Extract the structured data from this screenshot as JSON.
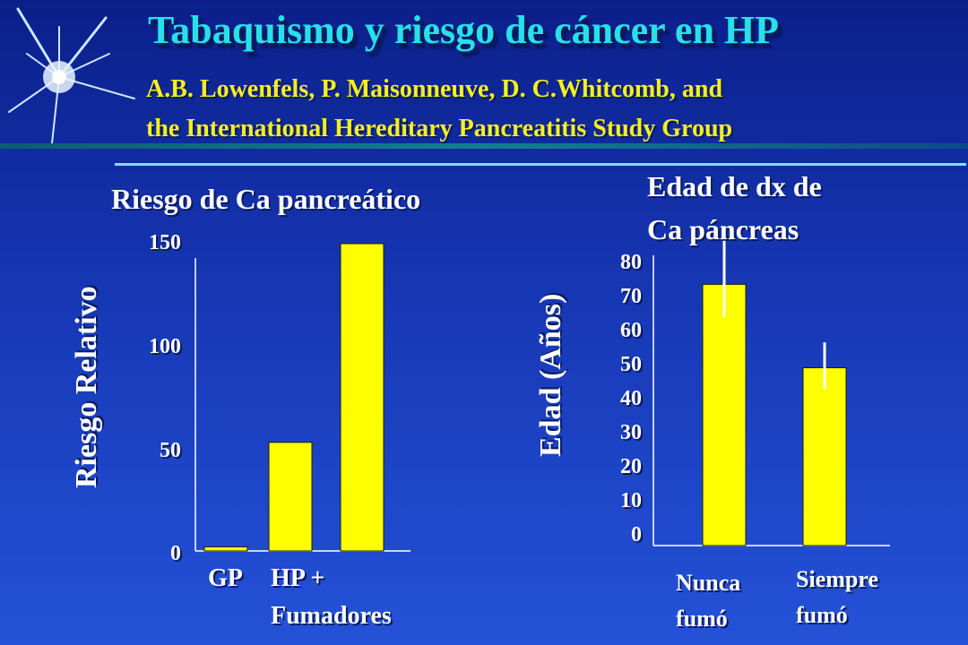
{
  "slide": {
    "title": "Tabaquismo y riesgo de cáncer en HP",
    "authors_line1": "A.B. Lowenfels, P. Maisonneuve, D. C.Whitcomb, and",
    "authors_line2": "the International Hereditary Pancreatitis Study Group"
  },
  "chart_data": [
    {
      "type": "bar",
      "title": "Riesgo de Ca pancreático",
      "ylabel": "Riesgo Relativo",
      "xlabel": "",
      "categories": [
        "GP",
        "HP",
        "HP + Fumadores"
      ],
      "category_labels_shown": [
        "GP",
        "HP +",
        "Fumadores"
      ],
      "values": [
        2,
        53,
        154
      ],
      "ylim": [
        0,
        150
      ],
      "yticks": [
        "150",
        "100",
        "50",
        "0"
      ],
      "color": "#ffff00",
      "grid": false
    },
    {
      "type": "bar",
      "title_line1": "Edad de dx de",
      "title_line2": "Ca páncreas",
      "ylabel": "Edad (Años)",
      "xlabel": "",
      "categories": [
        "Nunca fumó",
        "Siempre fumó"
      ],
      "category_line1": [
        "Nunca",
        "Siempre"
      ],
      "category_line2": [
        "fumó",
        "fumó"
      ],
      "values": [
        72,
        49
      ],
      "error_bars": [
        [
          63,
          84
        ],
        [
          43,
          56
        ]
      ],
      "ylim": [
        0,
        80
      ],
      "yticks": [
        "80",
        "70",
        "60",
        "50",
        "40",
        "30",
        "20",
        "10",
        "0"
      ],
      "color": "#ffff00",
      "grid": false
    }
  ]
}
